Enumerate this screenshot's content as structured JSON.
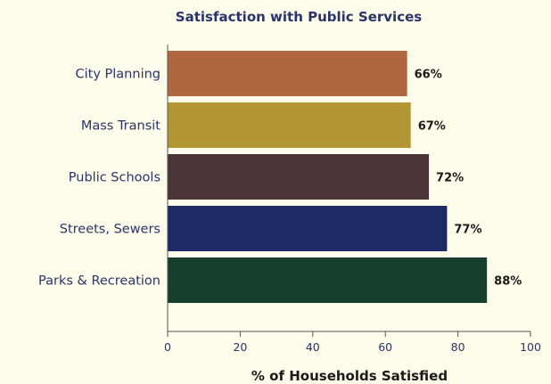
{
  "chart_data": {
    "type": "bar",
    "orientation": "horizontal",
    "title": "Satisfaction with Public Services",
    "xlabel": "% of Households Satisfied",
    "ylabel": "",
    "categories": [
      "City Planning",
      "Mass Transit",
      "Public Schools",
      "Streets, Sewers",
      "Parks & Recreation"
    ],
    "values": [
      66,
      67,
      72,
      77,
      88
    ],
    "value_labels": [
      "66%",
      "67%",
      "72%",
      "77%",
      "88%"
    ],
    "bar_colors": [
      "#b0663e",
      "#b29634",
      "#4a3438",
      "#1e2a66",
      "#173f2e"
    ],
    "xlim": [
      0,
      100
    ],
    "xticks": [
      0,
      20,
      40,
      60,
      80,
      100
    ],
    "xtick_labels": [
      "0",
      "20",
      "40",
      "60",
      "80",
      "100"
    ],
    "grid": false,
    "legend": "none"
  },
  "colors": {
    "background": "#fdfbe9",
    "text": "#2a3468",
    "axis": "#555555"
  }
}
